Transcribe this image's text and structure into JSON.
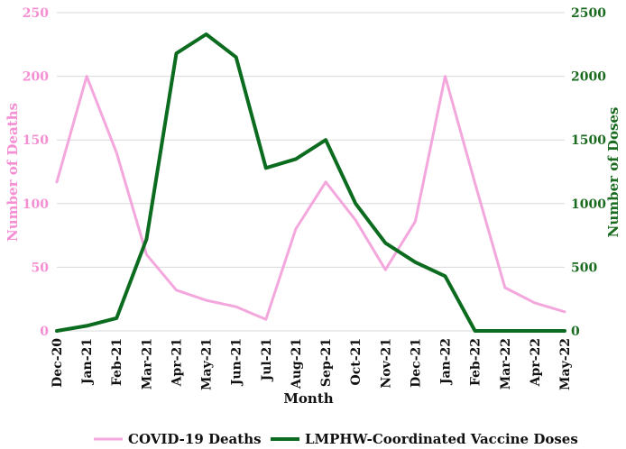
{
  "chart_data": {
    "type": "line",
    "title": "",
    "xlabel": "Month",
    "ylabel_left": "Number of Deaths",
    "ylabel_right": "Number of Doses",
    "ylim_left": [
      0,
      250
    ],
    "ylim_right": [
      0,
      2500
    ],
    "yticks_left": [
      "0",
      "50",
      "100",
      "150",
      "200",
      "250"
    ],
    "yticks_right": [
      "0",
      "500",
      "1000",
      "1500",
      "2000",
      "2500"
    ],
    "categories": [
      "Dec-20",
      "Jan-21",
      "Feb-21",
      "Mar-21",
      "Apr-21",
      "May-21",
      "Jun-21",
      "Jul-21",
      "Aug-21",
      "Sep-21",
      "Oct-21",
      "Nov-21",
      "Dec-21",
      "Jan-22",
      "Feb-22",
      "Mar-22",
      "Apr-22",
      "May-22"
    ],
    "grid": true,
    "legend_position": "bottom",
    "series": [
      {
        "name": "COVID-19 Deaths",
        "axis": "left",
        "color": "#f4a7dd",
        "values": [
          117,
          200,
          140,
          60,
          32,
          24,
          19,
          9,
          80,
          117,
          87,
          48,
          86,
          200,
          116,
          34,
          22,
          15
        ]
      },
      {
        "name": "LMPHW-Coordinated Vaccine Doses",
        "axis": "right",
        "color": "#0b6b1e",
        "values": [
          0,
          40,
          100,
          720,
          2180,
          2330,
          2150,
          1280,
          1350,
          1500,
          1000,
          690,
          540,
          430,
          0,
          0,
          0,
          0
        ]
      }
    ]
  },
  "colors": {
    "left_axis": "#f48fd3",
    "right_axis": "#1a6b1f",
    "grid": "#d9d9d9"
  }
}
